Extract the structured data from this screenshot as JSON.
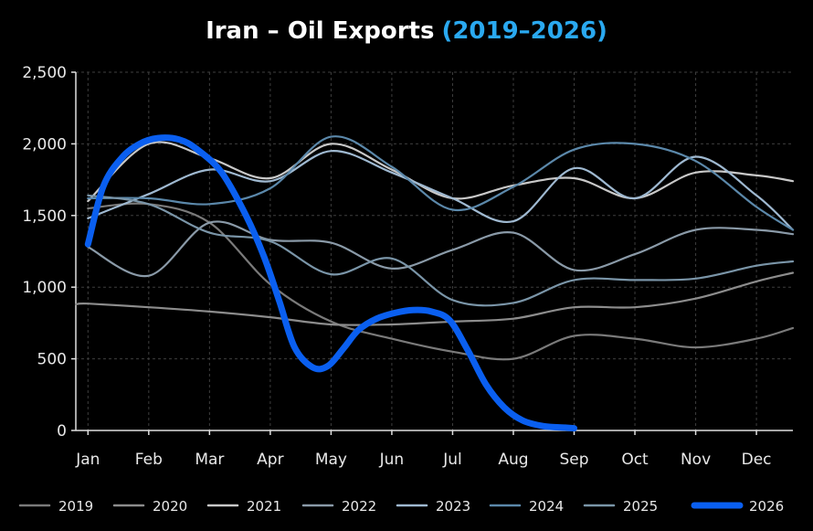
{
  "chart_data": {
    "type": "line",
    "title": "Iran – Oil Exports",
    "subtitle": "(2019–2026)",
    "xlabel": "",
    "ylabel": "",
    "categories": [
      "Jan",
      "Feb",
      "Mar",
      "Apr",
      "May",
      "Jun",
      "Jul",
      "Aug",
      "Sep",
      "Oct",
      "Nov",
      "Dec"
    ],
    "x_range": [
      0.8,
      12.6
    ],
    "ylim": [
      0,
      2500
    ],
    "yticks": [
      0,
      500,
      1000,
      1500,
      2000,
      2500
    ],
    "ytick_labels": [
      "0",
      "500",
      "1,000",
      "1,500",
      "2,000",
      "2,500"
    ],
    "grid": true,
    "legend_position": "bottom",
    "series": [
      {
        "name": "2019",
        "color": "#7a7a7a",
        "x": [
          1.0,
          2.0,
          3.0,
          4.0,
          5.0,
          6.0,
          7.0,
          8.0,
          9.0,
          10.0,
          11.0,
          12.0,
          12.6
        ],
        "values": [
          1550,
          1580,
          1450,
          1020,
          760,
          640,
          550,
          500,
          660,
          640,
          580,
          640,
          715
        ]
      },
      {
        "name": "2020",
        "color": "#8c8c8c",
        "x": [
          0.8,
          1.0,
          2.0,
          3.0,
          4.0,
          5.0,
          6.0,
          7.0,
          8.0,
          9.0,
          10.0,
          11.0,
          12.0,
          12.6
        ],
        "values": [
          880,
          885,
          860,
          830,
          790,
          740,
          740,
          760,
          780,
          860,
          860,
          920,
          1040,
          1100
        ]
      },
      {
        "name": "2021",
        "color": "#c8c8c8",
        "x": [
          1.0,
          2.0,
          3.0,
          4.0,
          5.0,
          6.0,
          7.0,
          8.0,
          9.0,
          10.0,
          11.0,
          12.0,
          12.6
        ],
        "values": [
          1600,
          2000,
          1900,
          1760,
          2000,
          1820,
          1620,
          1710,
          1760,
          1620,
          1800,
          1780,
          1740
        ]
      },
      {
        "name": "2022",
        "color": "#8a9aa8",
        "x": [
          1.0,
          2.0,
          3.0,
          4.0,
          5.0,
          6.0,
          7.0,
          8.0,
          9.0,
          10.0,
          11.0,
          12.0,
          12.6
        ],
        "values": [
          1280,
          1080,
          1450,
          1330,
          1310,
          1130,
          1260,
          1380,
          1120,
          1230,
          1400,
          1400,
          1370
        ]
      },
      {
        "name": "2023",
        "color": "#9fb9d1",
        "x": [
          1.0,
          2.0,
          3.0,
          4.0,
          5.0,
          6.0,
          7.0,
          8.0,
          9.0,
          10.0,
          11.0,
          12.0,
          12.6
        ],
        "values": [
          1480,
          1650,
          1820,
          1740,
          1950,
          1800,
          1620,
          1460,
          1830,
          1620,
          1910,
          1640,
          1400
        ]
      },
      {
        "name": "2024",
        "color": "#5b88aa",
        "x": [
          1.0,
          2.0,
          3.0,
          4.0,
          5.0,
          6.0,
          7.0,
          8.0,
          9.0,
          10.0,
          11.0,
          12.0,
          12.6
        ],
        "values": [
          1620,
          1620,
          1580,
          1690,
          2050,
          1840,
          1540,
          1700,
          1960,
          2000,
          1880,
          1560,
          1400
        ]
      },
      {
        "name": "2025",
        "color": "#7a95a8",
        "x": [
          1.0,
          2.0,
          3.0,
          4.0,
          5.0,
          6.0,
          7.0,
          8.0,
          9.0,
          10.0,
          11.0,
          12.0,
          12.6
        ],
        "values": [
          1640,
          1580,
          1380,
          1320,
          1090,
          1200,
          910,
          890,
          1050,
          1050,
          1060,
          1150,
          1180
        ]
      },
      {
        "name": "2026",
        "color": "#0a5ff0",
        "x": [
          1.0,
          1.25,
          1.55,
          1.85,
          2.15,
          2.5,
          2.8,
          3.2,
          3.6,
          3.9,
          4.15,
          4.4,
          4.7,
          4.95,
          5.2,
          5.45,
          5.75,
          6.05,
          6.35,
          6.65,
          6.95,
          7.25,
          7.55,
          7.85,
          8.15,
          8.5,
          8.85,
          9.0
        ],
        "values": [
          1300,
          1700,
          1900,
          2000,
          2040,
          2030,
          1960,
          1800,
          1500,
          1210,
          900,
          580,
          440,
          450,
          570,
          700,
          780,
          820,
          840,
          830,
          770,
          560,
          320,
          160,
          70,
          30,
          20,
          15
        ]
      }
    ]
  }
}
